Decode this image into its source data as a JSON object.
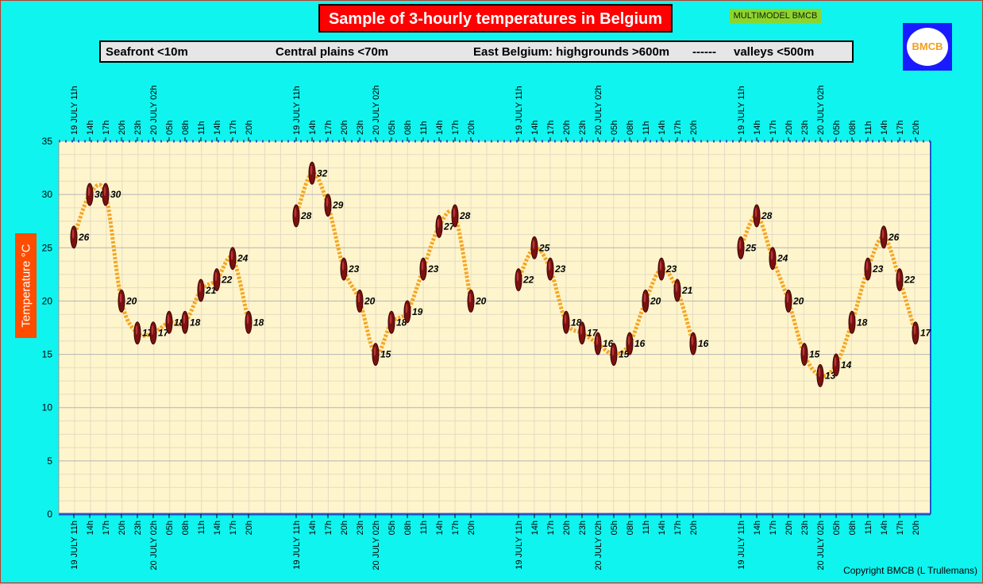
{
  "header": {
    "title": "Sample of 3-hourly temperatures in Belgium",
    "model_badge": "MULTIMODEL BMCB",
    "logo_text": "BMCB"
  },
  "legend": {
    "seafront": "Seafront <10m",
    "central": "Central plains <70m",
    "east": "East Belgium: highgrounds >600m",
    "separator": "------",
    "valleys": "valleys <500m"
  },
  "axis": {
    "ylabel": "Temperature  °C"
  },
  "footer": {
    "copyright": "Copyright BMCB (L Trullemans)"
  },
  "colors": {
    "background": "#0ff4ee",
    "plot_area": "#fff5cc",
    "line": "#f5a623",
    "marker": "#7a1010",
    "title_bg": "#ff0000",
    "ylabel_bg": "#ff4d00",
    "axis_line": "#2255cc"
  },
  "chart_data": {
    "type": "line",
    "title": "Sample of 3-hourly temperatures in Belgium",
    "ylabel": "Temperature  °C",
    "ylim": [
      0,
      35
    ],
    "yticks": [
      0,
      5,
      10,
      15,
      20,
      25,
      30,
      35
    ],
    "grid": true,
    "x": [
      "19 JULY 11h",
      "14h",
      "17h",
      "20h",
      "23h",
      "20 JULY 02h",
      "05h",
      "08h",
      "11h",
      "14h",
      "17h",
      "20h"
    ],
    "series": [
      {
        "name": "Seafront <10m",
        "values": [
          26,
          30,
          30,
          20,
          17,
          17,
          18,
          18,
          21,
          22,
          24,
          18
        ]
      },
      {
        "name": "Central plains <70m",
        "values": [
          28,
          32,
          29,
          23,
          20,
          15,
          18,
          19,
          23,
          27,
          28,
          20
        ]
      },
      {
        "name": "East Belgium: highgrounds >600m",
        "values": [
          22,
          25,
          23,
          18,
          17,
          16,
          15,
          16,
          20,
          23,
          21,
          16
        ]
      },
      {
        "name": "valleys <500m",
        "values": [
          25,
          28,
          24,
          20,
          15,
          13,
          14,
          18,
          23,
          26,
          22,
          17
        ]
      }
    ]
  }
}
